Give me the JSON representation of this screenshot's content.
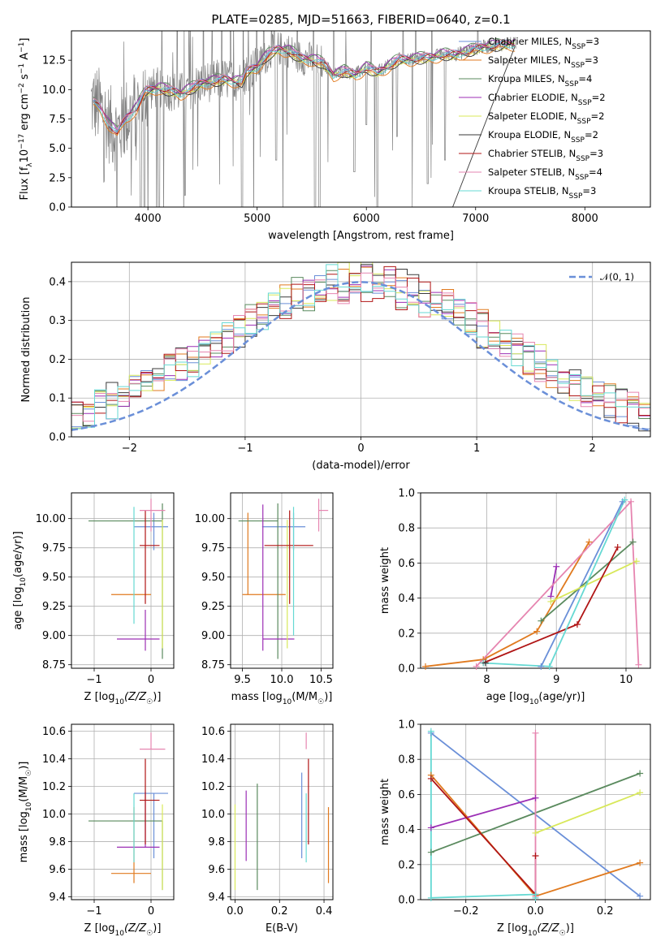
{
  "palette": [
    "#6a8fd8",
    "#e07a1f",
    "#5a8a5e",
    "#9c2fb5",
    "#d8e85a",
    "#3a3a3a",
    "#b01515",
    "#e685b0",
    "#66d9d3"
  ],
  "chart_data": [
    {
      "id": "spectrum",
      "type": "line",
      "title": "PLATE=0285, MJD=51663, FIBERID=0640, z=0.1",
      "xlabel": "wavelength [Angstrom, rest frame]",
      "ylabel_main": "Flux [f",
      "ylabel_sub1": "λ",
      "ylabel_mid": "10",
      "ylabel_sup1": "−17",
      "ylabel_mid2": " erg cm",
      "ylabel_sup2": "−2",
      "ylabel_mid3": " s",
      "ylabel_sup3": "−1",
      "ylabel_mid4": " A",
      "ylabel_sup4": "−1",
      "ylabel_end": "]",
      "xlim": [
        3300,
        8600
      ],
      "ylim": [
        0,
        15
      ],
      "xticks": [
        "4000",
        "5000",
        "6000",
        "7000",
        "8000"
      ],
      "xtick_values": [
        4000,
        5000,
        6000,
        7000,
        8000
      ],
      "yticks": [
        "0.0",
        "2.5",
        "5.0",
        "7.5",
        "10.0",
        "12.5"
      ],
      "ytick_values": [
        0,
        2.5,
        5,
        7.5,
        10,
        12.5
      ],
      "legend_position": "right",
      "legend": [
        {
          "name": "Chabrier MILES, N",
          "sub": "SSP",
          "tail": "=3"
        },
        {
          "name": "Salpeter MILES, N",
          "sub": "SSP",
          "tail": "=3"
        },
        {
          "name": "Kroupa MILES, N",
          "sub": "SSP",
          "tail": "=4"
        },
        {
          "name": "Chabrier ELODIE, N",
          "sub": "SSP",
          "tail": "=2"
        },
        {
          "name": "Salpeter ELODIE, N",
          "sub": "SSP",
          "tail": "=2"
        },
        {
          "name": "Kroupa ELODIE, N",
          "sub": "SSP",
          "tail": "=2"
        },
        {
          "name": "Chabrier STELIB, N",
          "sub": "SSP",
          "tail": "=3"
        },
        {
          "name": "Salpeter STELIB, N",
          "sub": "SSP",
          "tail": "=4"
        },
        {
          "name": "Kroupa STELIB, N",
          "sub": "SSP",
          "tail": "=3"
        }
      ],
      "model_anchor_points": [
        [
          3500,
          8.9
        ],
        [
          3560,
          8.5
        ],
        [
          3650,
          7.0
        ],
        [
          3720,
          6.3
        ],
        [
          3800,
          7.6
        ],
        [
          3900,
          8.5
        ],
        [
          3980,
          9.9
        ],
        [
          4100,
          10.2
        ],
        [
          4300,
          9.7
        ],
        [
          4500,
          10.6
        ],
        [
          4700,
          10.9
        ],
        [
          4860,
          10.7
        ],
        [
          4900,
          11.5
        ],
        [
          5000,
          12.0
        ],
        [
          5100,
          13.0
        ],
        [
          5200,
          13.5
        ],
        [
          5300,
          13.3
        ],
        [
          5400,
          12.7
        ],
        [
          5500,
          12.6
        ],
        [
          5600,
          12.3
        ],
        [
          5700,
          11.3
        ],
        [
          5800,
          11.6
        ],
        [
          5900,
          11.3
        ],
        [
          6000,
          11.9
        ],
        [
          6100,
          11.5
        ],
        [
          6200,
          12.0
        ],
        [
          6300,
          12.6
        ],
        [
          6400,
          12.6
        ],
        [
          6500,
          12.7
        ],
        [
          6600,
          12.8
        ],
        [
          6700,
          13.0
        ],
        [
          6800,
          13.0
        ],
        [
          6900,
          13.2
        ],
        [
          7000,
          13.5
        ],
        [
          7100,
          13.7
        ],
        [
          7200,
          13.8
        ],
        [
          7300,
          13.9
        ],
        [
          7370,
          13.9
        ]
      ]
    },
    {
      "id": "residuals",
      "type": "line",
      "title": "",
      "xlabel": "(data-model)/error",
      "ylabel": "Normed distribution",
      "xlim": [
        -2.5,
        2.5
      ],
      "ylim": [
        0,
        0.45
      ],
      "xticks": [
        "−2",
        "−1",
        "0",
        "1",
        "2"
      ],
      "xtick_values": [
        -2,
        -1,
        0,
        1,
        2
      ],
      "yticks": [
        "0.0",
        "0.1",
        "0.2",
        "0.3",
        "0.4"
      ],
      "ytick_values": [
        0,
        0.1,
        0.2,
        0.3,
        0.4
      ],
      "legend": [
        {
          "name": "𝒩(0, 1)"
        }
      ],
      "legend_position": "top-right",
      "gaussian": {
        "mean": 0,
        "sigma": 1
      }
    },
    {
      "id": "age-vs-Z",
      "type": "scatter",
      "xlabel_main": "Z [log",
      "xlabel_sub": "10",
      "xlabel_end": "(Z/Z",
      "xlabel_odot": "☉",
      "xlabel_close": ")]",
      "ylabel_main": "age  [log",
      "ylabel_sub": "10",
      "ylabel_end": "(age/yr)]",
      "xlim": [
        -1.4,
        0.4
      ],
      "ylim": [
        8.72,
        10.22
      ],
      "xticks": [
        "−1",
        "0"
      ],
      "xtick_values": [
        -1,
        0
      ],
      "yticks": [
        "8.75",
        "9.00",
        "9.25",
        "9.50",
        "9.75",
        "10.00"
      ],
      "ytick_values": [
        8.75,
        9,
        9.25,
        9.5,
        9.75,
        10
      ],
      "errorbars": [
        {
          "x": 0.05,
          "y": 9.93,
          "xerr": [
            0.35,
            0.25
          ],
          "yerr": [
            0.2,
            0.12
          ],
          "c": 0
        },
        {
          "x": -0.3,
          "y": 9.35,
          "xerr": [
            0.4,
            0.3
          ],
          "yerr": [
            0.0,
            0.0
          ],
          "c": 1
        },
        {
          "x": 0.2,
          "y": 9.98,
          "xerr": [
            1.3,
            0.0
          ],
          "yerr": [
            1.18,
            0.15
          ],
          "c": 2
        },
        {
          "x": -0.1,
          "y": 8.97,
          "xerr": [
            0.5,
            0.25
          ],
          "yerr": [
            0.1,
            0.25
          ],
          "c": 3
        },
        {
          "x": 0.2,
          "y": 9.99,
          "xerr": [
            0.0,
            0.0
          ],
          "yerr": [
            1.1,
            0.0
          ],
          "c": 4
        },
        {
          "x": -0.1,
          "y": 9.77,
          "xerr": [
            0.1,
            0.25
          ],
          "yerr": [
            0.5,
            0.3
          ],
          "c": 6
        },
        {
          "x": 0.0,
          "y": 10.07,
          "xerr": [
            0.2,
            0.25
          ],
          "yerr": [
            0.18,
            0.1
          ],
          "c": 7
        },
        {
          "x": -0.3,
          "y": 9.7,
          "xerr": [
            0.0,
            0.0
          ],
          "yerr": [
            0.6,
            0.4
          ],
          "c": 8
        }
      ]
    },
    {
      "id": "age-vs-mass",
      "type": "scatter",
      "xlabel_main": "mass [log",
      "xlabel_sub": "10",
      "xlabel_end": "(M/M",
      "xlabel_odot": "☉",
      "xlabel_close": ")]",
      "xlim": [
        9.35,
        10.65
      ],
      "ylim": [
        8.72,
        10.22
      ],
      "xticks": [
        "9.5",
        "10.0",
        "10.5"
      ],
      "xtick_values": [
        9.5,
        10,
        10.5
      ],
      "yticks": [
        "8.75",
        "9.00",
        "9.25",
        "9.50",
        "9.75",
        "10.00"
      ],
      "ytick_values": [
        8.75,
        9,
        9.25,
        9.5,
        9.75,
        10
      ],
      "errorbars": [
        {
          "x": 10.15,
          "y": 9.93,
          "xerr": [
            0.4,
            0.15
          ],
          "yerr": [
            0.2,
            0.12
          ],
          "c": 0
        },
        {
          "x": 9.57,
          "y": 9.35,
          "xerr": [
            0.07,
            0.48
          ],
          "yerr": [
            0.0,
            0.7
          ],
          "c": 1
        },
        {
          "x": 9.95,
          "y": 9.98,
          "xerr": [
            0.5,
            0.0
          ],
          "yerr": [
            1.18,
            0.15
          ],
          "c": 2
        },
        {
          "x": 9.76,
          "y": 8.97,
          "xerr": [
            0.0,
            0.4
          ],
          "yerr": [
            0.1,
            1.15
          ],
          "c": 3
        },
        {
          "x": 10.07,
          "y": 9.99,
          "xerr": [
            0.0,
            0.0
          ],
          "yerr": [
            1.1,
            0.0
          ],
          "c": 4
        },
        {
          "x": 10.1,
          "y": 9.77,
          "xerr": [
            0.32,
            0.3
          ],
          "yerr": [
            0.5,
            0.3
          ],
          "c": 6
        },
        {
          "x": 10.47,
          "y": 10.07,
          "xerr": [
            0.0,
            0.12
          ],
          "yerr": [
            0.18,
            0.1
          ],
          "c": 7
        },
        {
          "x": 10.15,
          "y": 9.7,
          "xerr": [
            0.0,
            0.0
          ],
          "yerr": [
            0.7,
            0.4
          ],
          "c": 8
        }
      ]
    },
    {
      "id": "massweight-vs-age",
      "type": "line",
      "xlabel_main": "age  [log",
      "xlabel_sub": "10",
      "xlabel_end": "(age/yr)]",
      "ylabel": "mass weight",
      "xlim": [
        7.05,
        10.35
      ],
      "ylim": [
        0,
        1
      ],
      "xticks": [
        "8",
        "9",
        "10"
      ],
      "xtick_values": [
        8,
        9,
        10
      ],
      "yticks": [
        "0.0",
        "0.2",
        "0.4",
        "0.6",
        "0.8",
        "1.0"
      ],
      "ytick_values": [
        0,
        0.2,
        0.4,
        0.6,
        0.8,
        1
      ],
      "series": [
        {
          "c": 0,
          "x": [
            8.78,
            9.95
          ],
          "y": [
            0.01,
            0.95
          ]
        },
        {
          "c": 1,
          "x": [
            7.12,
            7.95,
            8.72,
            9.47
          ],
          "y": [
            0.01,
            0.05,
            0.21,
            0.72
          ]
        },
        {
          "c": 2,
          "x": [
            8.78,
            10.1
          ],
          "y": [
            0.27,
            0.72
          ]
        },
        {
          "c": 3,
          "x": [
            8.92,
            9.0
          ],
          "y": [
            0.41,
            0.58
          ]
        },
        {
          "c": 4,
          "x": [
            8.92,
            10.15
          ],
          "y": [
            0.38,
            0.61
          ]
        },
        {
          "c": 6,
          "x": [
            7.95,
            9.3,
            9.88
          ],
          "y": [
            0.03,
            0.25,
            0.69
          ]
        },
        {
          "c": 7,
          "x": [
            7.85,
            10.07,
            10.18
          ],
          "y": [
            0.01,
            0.95,
            0.02
          ]
        },
        {
          "c": 8,
          "x": [
            7.95,
            8.9,
            9.98
          ],
          "y": [
            0.03,
            0.01,
            0.96
          ]
        },
        {
          "c": 5,
          "x": [
            7.98
          ],
          "y": [
            0.03
          ]
        }
      ]
    },
    {
      "id": "mass-vs-Z",
      "type": "scatter",
      "xlabel_main": "Z [log",
      "xlabel_sub": "10",
      "xlabel_end": "(Z/Z",
      "xlabel_odot": "☉",
      "xlabel_close": ")]",
      "ylabel_main": "mass [log",
      "ylabel_sub": "10",
      "ylabel_end": "(M/M",
      "ylabel_odot": "☉",
      "ylabel_close": ")]",
      "xlim": [
        -1.4,
        0.4
      ],
      "ylim": [
        9.38,
        10.65
      ],
      "xticks": [
        "−1",
        "0"
      ],
      "xtick_values": [
        -1,
        0
      ],
      "yticks": [
        "9.4",
        "9.6",
        "9.8",
        "10.0",
        "10.2",
        "10.4",
        "10.6"
      ],
      "ytick_values": [
        9.4,
        9.6,
        9.8,
        10,
        10.2,
        10.4,
        10.6
      ],
      "errorbars": [
        {
          "x": 0.05,
          "y": 10.15,
          "xerr": [
            0.35,
            0.25
          ],
          "yerr": [
            0.47,
            0.0
          ],
          "c": 0
        },
        {
          "x": -0.3,
          "y": 9.57,
          "xerr": [
            0.4,
            0.3
          ],
          "yerr": [
            0.07,
            0.48
          ],
          "c": 1
        },
        {
          "x": 0.2,
          "y": 9.95,
          "xerr": [
            1.3,
            0.0
          ],
          "yerr": [
            0.5,
            0.0
          ],
          "c": 2
        },
        {
          "x": -0.1,
          "y": 9.76,
          "xerr": [
            0.5,
            0.25
          ],
          "yerr": [
            0.0,
            0.4
          ],
          "c": 3
        },
        {
          "x": 0.2,
          "y": 10.07,
          "xerr": [
            0.0,
            0.0
          ],
          "yerr": [
            0.62,
            0.0
          ],
          "c": 4
        },
        {
          "x": -0.1,
          "y": 10.1,
          "xerr": [
            0.1,
            0.25
          ],
          "yerr": [
            0.32,
            0.3
          ],
          "c": 6
        },
        {
          "x": 0.0,
          "y": 10.47,
          "xerr": [
            0.2,
            0.25
          ],
          "yerr": [
            0.0,
            0.12
          ],
          "c": 7
        },
        {
          "x": -0.3,
          "y": 10.15,
          "xerr": [
            0.0,
            0.0
          ],
          "yerr": [
            0.5,
            0.0
          ],
          "c": 8
        }
      ]
    },
    {
      "id": "mass-vs-ebv",
      "type": "scatter",
      "xlabel": "E(B-V)",
      "xlim": [
        -0.02,
        0.44
      ],
      "ylim": [
        9.38,
        10.65
      ],
      "xticks": [
        "0.0",
        "0.2",
        "0.4"
      ],
      "xtick_values": [
        0,
        0.2,
        0.4
      ],
      "yticks": [
        "9.4",
        "9.6",
        "9.8",
        "10.0",
        "10.2",
        "10.4",
        "10.6"
      ],
      "ytick_values": [
        9.4,
        9.6,
        9.8,
        10,
        10.2,
        10.4,
        10.6
      ],
      "errorbars": [
        {
          "x": 0.3,
          "y": 10.15,
          "yerr": [
            0.47,
            0.15
          ],
          "c": 0
        },
        {
          "x": 0.42,
          "y": 9.57,
          "yerr": [
            0.07,
            0.48
          ],
          "c": 1
        },
        {
          "x": 0.1,
          "y": 9.95,
          "yerr": [
            0.5,
            0.27
          ],
          "c": 2
        },
        {
          "x": 0.05,
          "y": 9.76,
          "yerr": [
            0.1,
            0.41
          ],
          "c": 3
        },
        {
          "x": 0.0,
          "y": 10.07,
          "yerr": [
            0.62,
            0.0
          ],
          "c": 4
        },
        {
          "x": 0.33,
          "y": 10.1,
          "yerr": [
            0.32,
            0.3
          ],
          "c": 6
        },
        {
          "x": 0.32,
          "y": 10.47,
          "yerr": [
            0.0,
            0.12
          ],
          "c": 7
        },
        {
          "x": 0.32,
          "y": 10.15,
          "yerr": [
            0.5,
            0.0
          ],
          "c": 8
        }
      ]
    },
    {
      "id": "massweight-vs-Z",
      "type": "line",
      "xlabel_main": "Z [log",
      "xlabel_sub": "10",
      "xlabel_end": "(Z/Z",
      "xlabel_odot": "☉",
      "xlabel_close": ")]",
      "ylabel": "mass weight",
      "xlim": [
        -0.33,
        0.33
      ],
      "ylim": [
        0,
        1
      ],
      "xticks": [
        "−0.2",
        "0.0",
        "0.2"
      ],
      "xtick_values": [
        -0.2,
        0,
        0.2
      ],
      "yticks": [
        "0.0",
        "0.2",
        "0.4",
        "0.6",
        "0.8",
        "1.0"
      ],
      "ytick_values": [
        0,
        0.2,
        0.4,
        0.6,
        0.8,
        1
      ],
      "series": [
        {
          "c": 0,
          "x": [
            -0.3,
            0.3
          ],
          "y": [
            0.95,
            0.02
          ]
        },
        {
          "c": 1,
          "x": [
            -0.3,
            0.0,
            0.3
          ],
          "y": [
            0.71,
            0.02,
            0.21
          ]
        },
        {
          "c": 2,
          "x": [
            -0.3,
            0.3
          ],
          "y": [
            0.27,
            0.72
          ]
        },
        {
          "c": 3,
          "x": [
            -0.3,
            0.0
          ],
          "y": [
            0.41,
            0.58
          ]
        },
        {
          "c": 4,
          "x": [
            0.0,
            0.3
          ],
          "y": [
            0.38,
            0.61
          ]
        },
        {
          "c": 6,
          "x": [
            -0.3,
            0.0,
            0.0
          ],
          "y": [
            0.69,
            0.03,
            0.25
          ]
        },
        {
          "c": 7,
          "x": [
            0.0,
            0.0
          ],
          "y": [
            0.02,
            0.95
          ]
        },
        {
          "c": 8,
          "x": [
            -0.3,
            -0.3,
            0.0,
            0.0
          ],
          "y": [
            0.96,
            0.01,
            0.03,
            0.01
          ]
        }
      ]
    }
  ]
}
